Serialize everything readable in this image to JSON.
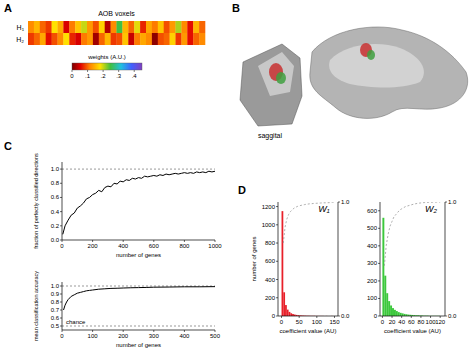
{
  "panel_b": {
    "panel": "B",
    "caption": "saggital"
  },
  "chart_data": [
    {
      "type": "heatmap",
      "panel": "A",
      "title": "AOB voxels",
      "rows": [
        "H₁",
        "H₂"
      ],
      "cells": [
        [
          0.12,
          0.15,
          0.1,
          0.08,
          0.18,
          0.14,
          0.05,
          0.11,
          0.16,
          0.2,
          0.13,
          0.09,
          0.17,
          0.03,
          0.12,
          0.25,
          0.15,
          0.1,
          0.19,
          0.07,
          0.14,
          0.11,
          0.16,
          0.09,
          0.13,
          0.21,
          0.12,
          0.06,
          0.15,
          0.1
        ],
        [
          0.08,
          0.1,
          0.14,
          0.06,
          0.09,
          0.12,
          0.18,
          0.07,
          0.05,
          0.11,
          0.13,
          0.02,
          0.1,
          0.15,
          0.08,
          0.09,
          0.16,
          0.04,
          0.11,
          0.14,
          0.12,
          0.01,
          0.09,
          0.1,
          0.17,
          0.08,
          0.13,
          0.06,
          0.1,
          0.12
        ]
      ],
      "colorbar": {
        "label": "weights (A.U.)",
        "range": [
          0,
          0.45
        ],
        "ticks": [
          0,
          {
            "value": 0.1,
            "label": ".1"
          },
          {
            "value": 0.2,
            "label": ".2"
          },
          {
            "value": 0.3,
            "label": ".3"
          },
          {
            "value": 0.4,
            "label": ".4"
          }
        ]
      }
    },
    {
      "type": "line",
      "panel": "C",
      "x_label": "number of genes",
      "y_label": "fraction of perfectly classified directions",
      "x": [
        5,
        20,
        40,
        60,
        80,
        100,
        120,
        140,
        160,
        180,
        200,
        220,
        240,
        260,
        280,
        300,
        320,
        340,
        360,
        380,
        400,
        420,
        440,
        460,
        480,
        500,
        520,
        540,
        560,
        580,
        600,
        620,
        640,
        660,
        680,
        700,
        720,
        740,
        760,
        780,
        800,
        820,
        840,
        860,
        880,
        900,
        920,
        940,
        960,
        980,
        1000
      ],
      "values": [
        0.08,
        0.2,
        0.28,
        0.35,
        0.38,
        0.45,
        0.48,
        0.52,
        0.58,
        0.6,
        0.64,
        0.66,
        0.7,
        0.68,
        0.74,
        0.76,
        0.75,
        0.8,
        0.79,
        0.83,
        0.82,
        0.85,
        0.84,
        0.87,
        0.86,
        0.88,
        0.87,
        0.9,
        0.89,
        0.9,
        0.91,
        0.9,
        0.92,
        0.91,
        0.93,
        0.92,
        0.93,
        0.94,
        0.93,
        0.94,
        0.95,
        0.94,
        0.95,
        0.94,
        0.96,
        0.95,
        0.96,
        0.95,
        0.97,
        0.96,
        0.97
      ],
      "color": "#000000",
      "xlim": [
        0,
        1000
      ],
      "xticks": [
        0,
        200,
        400,
        600,
        800,
        1000
      ],
      "ylim": [
        0,
        1.1
      ],
      "yticks": [
        {
          "value": 0,
          "label": "0.0"
        },
        0.2,
        0.4,
        0.6,
        0.8,
        {
          "value": 1,
          "label": "1.0"
        }
      ],
      "hlines": [
        1
      ]
    },
    {
      "type": "line",
      "x_label": "number of genes",
      "y_label": "mean classification accuracy",
      "x": [
        5,
        10,
        15,
        20,
        25,
        30,
        40,
        50,
        60,
        70,
        80,
        90,
        100,
        120,
        140,
        160,
        180,
        200,
        225,
        250,
        275,
        300,
        350,
        400,
        450,
        500
      ],
      "values": [
        0.7,
        0.76,
        0.8,
        0.83,
        0.85,
        0.87,
        0.89,
        0.91,
        0.92,
        0.93,
        0.94,
        0.945,
        0.95,
        0.96,
        0.965,
        0.97,
        0.972,
        0.975,
        0.978,
        0.98,
        0.982,
        0.985,
        0.987,
        0.99,
        0.99,
        0.992
      ],
      "color": "#000000",
      "xlim": [
        0,
        500
      ],
      "xticks": [
        0,
        100,
        200,
        300,
        400,
        500
      ],
      "ylim": [
        0.45,
        1.05
      ],
      "yticks": [
        0.5,
        0.6,
        0.7,
        0.8,
        0.9,
        {
          "value": 1,
          "label": "1.0"
        }
      ],
      "hlines": [
        0.5,
        1
      ],
      "annotations": [
        {
          "text": "chance",
          "y": 0.5
        }
      ]
    },
    {
      "type": "histogram",
      "panel": "D",
      "title": "W₁",
      "x_label": "coefficient value (AU)",
      "y_label": "number of genes",
      "color": "#e8202a",
      "bins": [
        0,
        5,
        10,
        15,
        20,
        25,
        30,
        35,
        40,
        45,
        50,
        55,
        60,
        65,
        70,
        75,
        80,
        85,
        90,
        95,
        100,
        105,
        110,
        115,
        120,
        125,
        130,
        135,
        140,
        145,
        150
      ],
      "counts": [
        1150,
        260,
        120,
        70,
        45,
        30,
        22,
        16,
        12,
        9,
        7,
        6,
        5,
        4,
        3,
        3,
        2,
        2,
        2,
        1,
        1,
        1,
        1,
        1,
        0,
        1,
        0,
        0,
        1,
        0
      ],
      "xlim": [
        -10,
        160
      ],
      "xticks": [
        0,
        50,
        100,
        150
      ],
      "ylim": [
        0,
        1250
      ],
      "yticks": [
        0,
        200,
        400,
        600,
        800,
        1000,
        1200
      ],
      "y2lim": [
        0,
        1
      ],
      "y2ticks": [
        {
          "value": 0,
          "label": "0.0"
        },
        {
          "value": 1,
          "label": "1.0"
        }
      ],
      "cumulative": {
        "axis": "y2",
        "line_style": "dashed",
        "color": "#999999",
        "x": [
          5,
          10,
          15,
          20,
          25,
          30,
          35,
          40,
          45,
          50,
          55,
          60,
          65,
          70,
          75,
          80,
          85,
          90,
          95,
          100,
          105,
          110,
          115,
          120,
          125,
          130,
          135,
          140,
          145,
          150
        ],
        "values": [
          0.64,
          0.78,
          0.85,
          0.89,
          0.915,
          0.93,
          0.945,
          0.954,
          0.961,
          0.966,
          0.97,
          0.974,
          0.977,
          0.98,
          0.982,
          0.984,
          0.985,
          0.987,
          0.988,
          0.989,
          0.99,
          0.991,
          0.992,
          0.993,
          0.993,
          0.994,
          0.994,
          0.997,
          0.998,
          1.0
        ]
      }
    },
    {
      "type": "histogram",
      "title": "W₂",
      "x_label": "coefficient value (AU)",
      "color": "#3cc83c",
      "bins": [
        0,
        4,
        8,
        12,
        16,
        20,
        24,
        28,
        32,
        36,
        40,
        44,
        48,
        52,
        56,
        60,
        64,
        68,
        72,
        76,
        80,
        84,
        88,
        92,
        96,
        100,
        104,
        108,
        112,
        116,
        120
      ],
      "counts": [
        560,
        230,
        130,
        85,
        60,
        45,
        35,
        28,
        22,
        18,
        15,
        12,
        10,
        8,
        7,
        6,
        5,
        4,
        4,
        3,
        3,
        2,
        2,
        2,
        1,
        1,
        1,
        1,
        1,
        1
      ],
      "xlim": [
        -5,
        130
      ],
      "xticks": [
        0,
        20,
        40,
        60,
        80,
        100,
        120
      ],
      "ylim": [
        0,
        650
      ],
      "yticks": [
        0,
        100,
        200,
        300,
        400,
        500,
        600
      ],
      "y2lim": [
        0,
        1
      ],
      "y2ticks": [
        {
          "value": 0,
          "label": "0.0"
        },
        {
          "value": 1,
          "label": "1.0"
        }
      ],
      "cumulative": {
        "axis": "y2",
        "line_style": "dashed",
        "color": "#999999",
        "x": [
          4,
          8,
          12,
          16,
          20,
          24,
          28,
          32,
          36,
          40,
          44,
          48,
          52,
          56,
          60,
          64,
          68,
          72,
          76,
          80,
          84,
          88,
          92,
          96,
          100,
          104,
          108,
          112,
          116,
          120
        ],
        "values": [
          0.44,
          0.62,
          0.72,
          0.79,
          0.83,
          0.87,
          0.89,
          0.91,
          0.93,
          0.94,
          0.95,
          0.96,
          0.965,
          0.97,
          0.975,
          0.98,
          0.984,
          0.987,
          0.99,
          0.992,
          0.994,
          0.995,
          0.996,
          0.997,
          0.997,
          0.998,
          0.998,
          0.999,
          0.999,
          1.0
        ]
      }
    }
  ]
}
